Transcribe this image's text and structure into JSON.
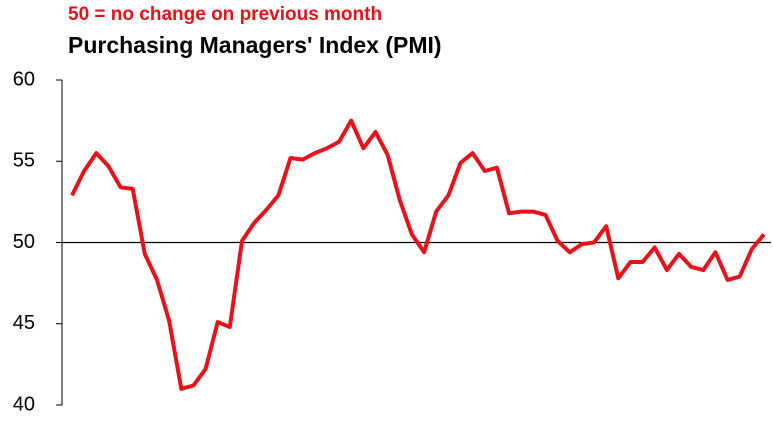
{
  "chart_data": {
    "type": "line",
    "subtitle": "50 =  no change on previous month",
    "title": "Purchasing Managers' Index (PMI)",
    "series": [
      {
        "color": "#e8121a",
        "values": [
          52.9,
          54.4,
          55.5,
          54.7,
          53.4,
          53.3,
          49.3,
          47.7,
          45.2,
          41.0,
          41.2,
          42.2,
          45.1,
          44.8,
          50.1,
          51.2,
          52.0,
          52.9,
          55.2,
          55.1,
          55.5,
          55.8,
          56.2,
          57.5,
          55.8,
          56.8,
          55.4,
          52.6,
          50.5,
          49.4,
          51.9,
          52.9,
          54.9,
          55.5,
          54.4,
          54.6,
          51.8,
          51.9,
          51.9,
          51.7,
          50.1,
          49.4,
          49.9,
          50.0,
          51.0,
          47.8,
          48.8,
          48.8,
          49.7,
          48.3,
          49.3,
          48.5,
          48.3,
          49.4,
          47.7,
          47.9,
          49.6,
          50.5
        ]
      }
    ],
    "reference_line": 50,
    "ylim": [
      40,
      60
    ],
    "yticks": [
      40,
      45,
      50,
      55,
      60
    ],
    "subtitle_color": "#e8121a"
  }
}
